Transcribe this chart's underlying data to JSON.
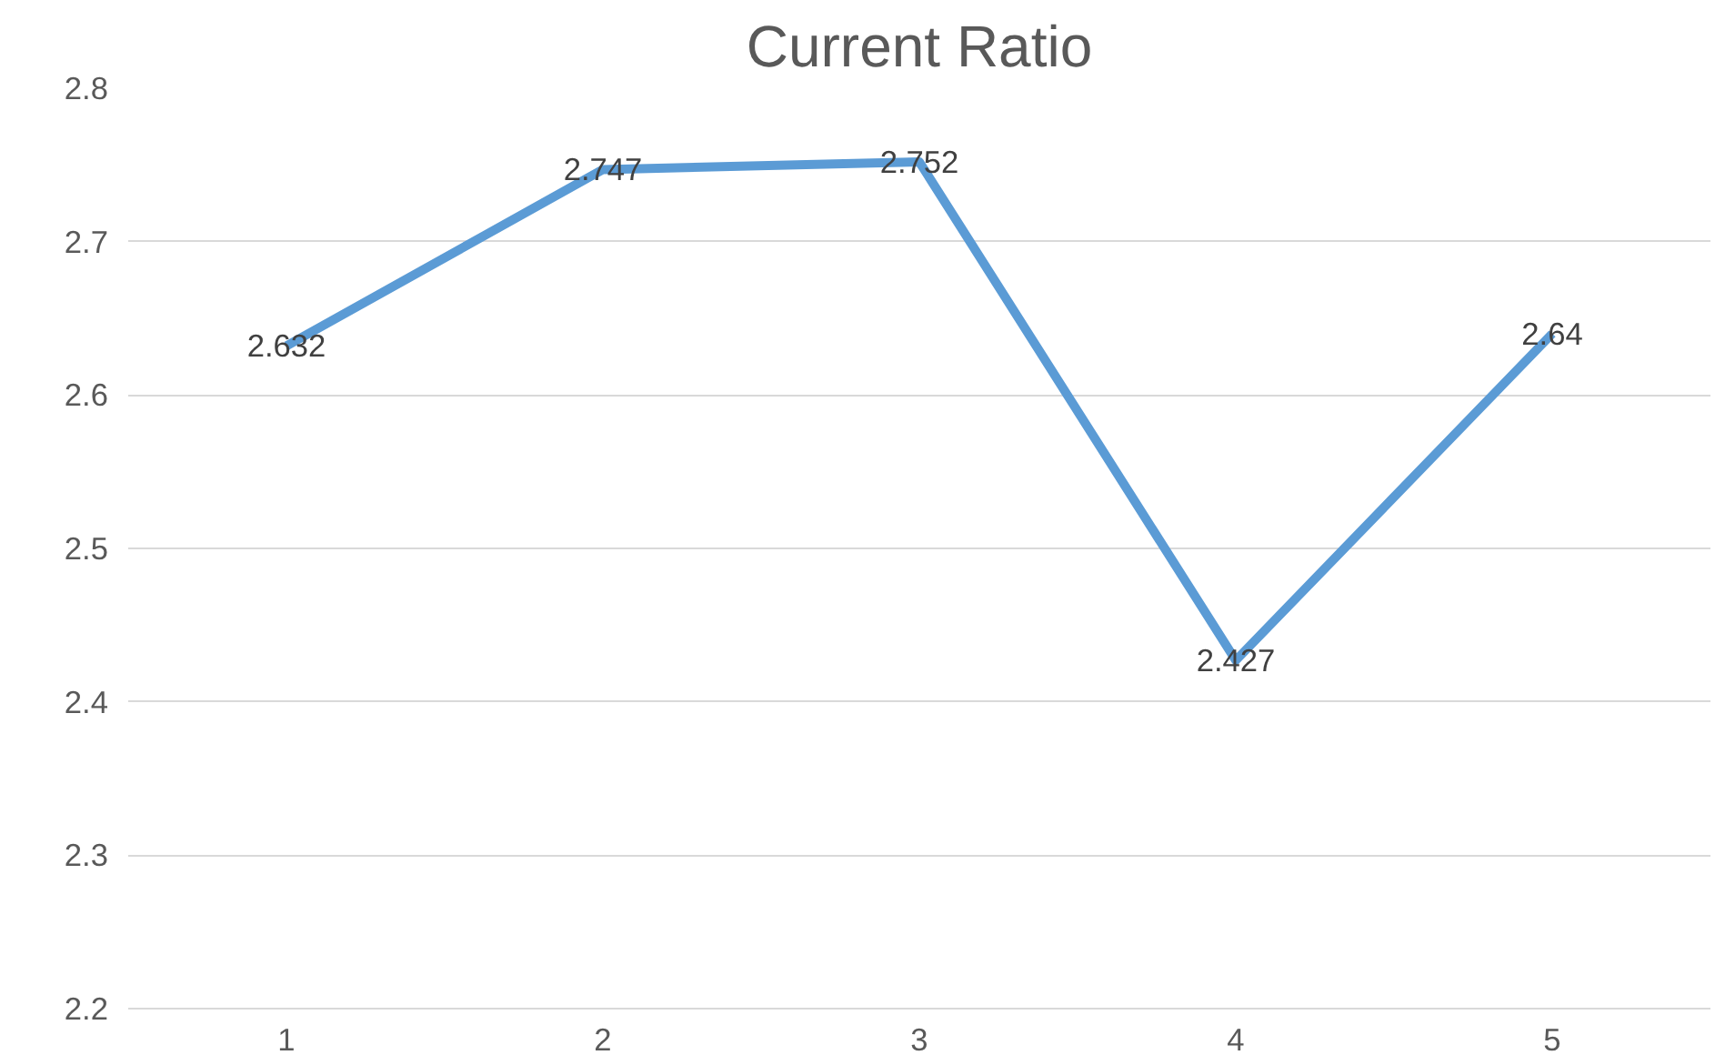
{
  "chart_data": {
    "type": "line",
    "title": "Current Ratio",
    "categories": [
      "1",
      "2",
      "3",
      "4",
      "5"
    ],
    "series": [
      {
        "color": "#5b9bd5",
        "values": [
          2.632,
          2.747,
          2.752,
          2.427,
          2.64
        ]
      }
    ],
    "ylim": [
      2.2,
      2.8
    ],
    "yticks": [
      2.2,
      2.3,
      2.4,
      2.5,
      2.6,
      2.7,
      2.8
    ],
    "grid": "y",
    "data_labels": true,
    "marker": "none",
    "line_style": "solid"
  }
}
